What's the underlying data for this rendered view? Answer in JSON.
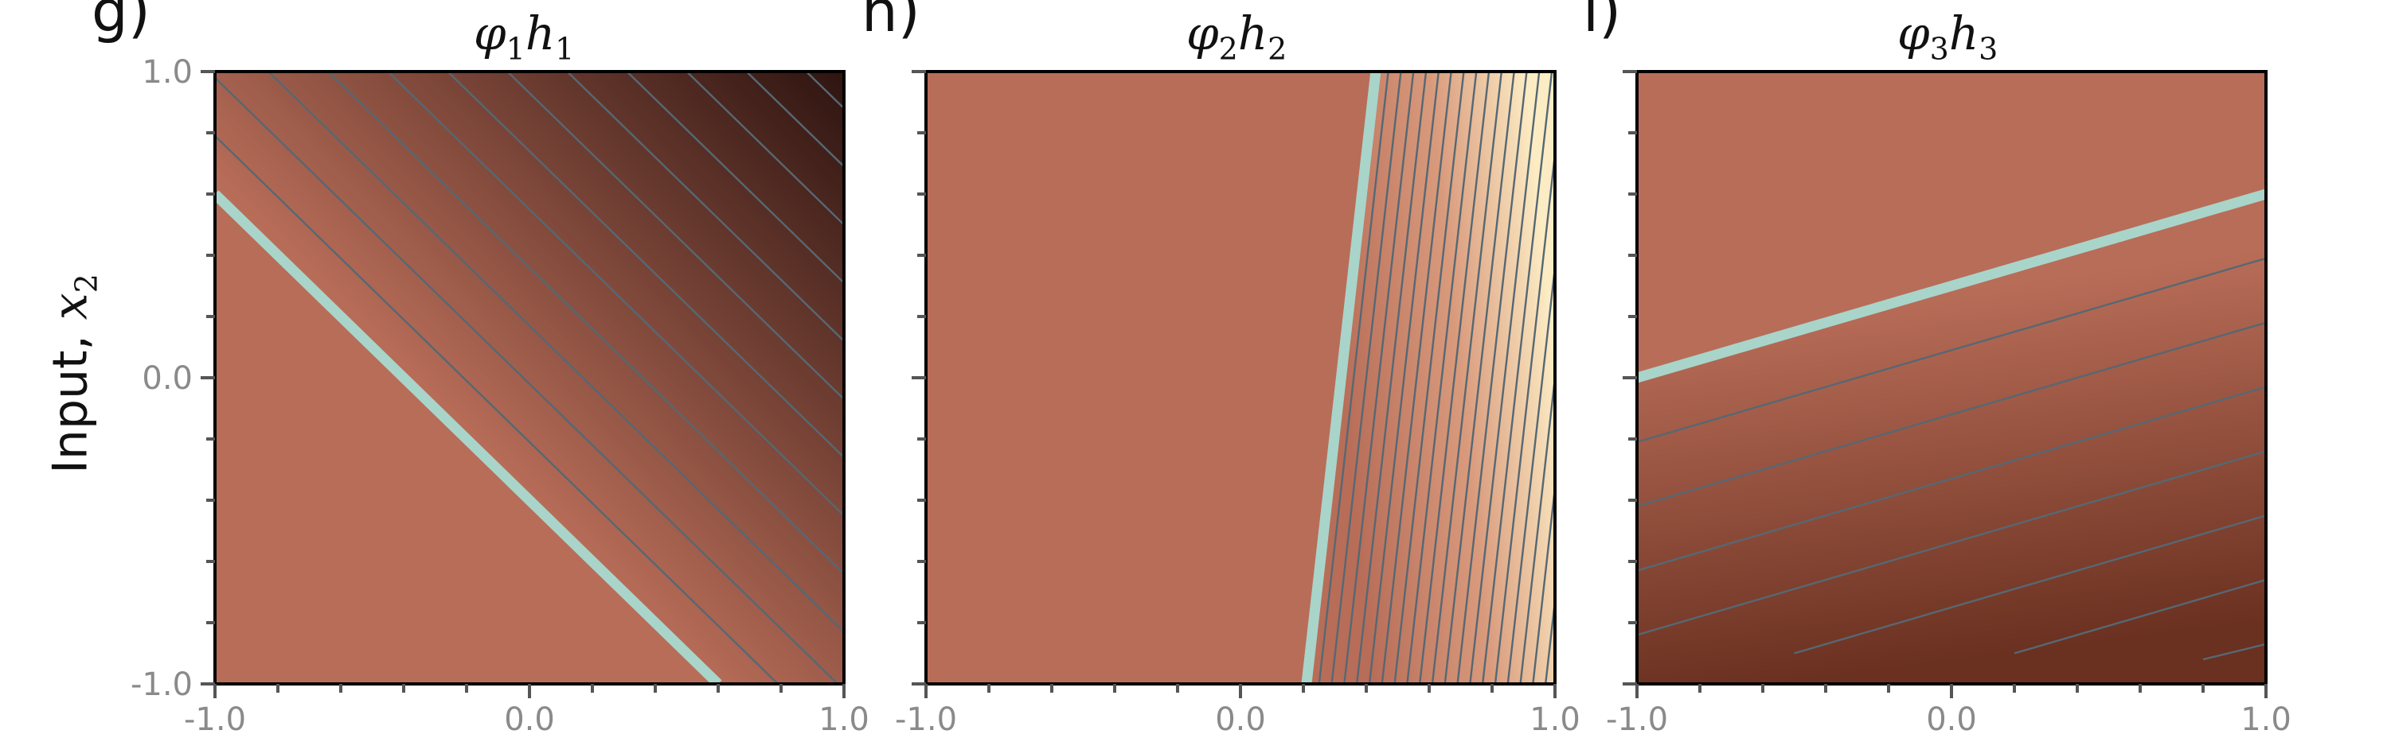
{
  "chart_data": [
    {
      "type": "heatmap",
      "panel_label": "g)",
      "title": "φ1h1",
      "title_base": "φ",
      "title_sub1": "1",
      "title_mid": "h",
      "title_sub2": "1",
      "xlim": [
        -1.0,
        1.0
      ],
      "ylim": [
        -1.0,
        1.0
      ],
      "x_ticklabels": [
        "-1.0",
        "0.0",
        "1.0"
      ],
      "y_ticklabels": [
        "-1.0",
        "0.0",
        "1.0"
      ],
      "colors": {
        "flat": "#b86d58",
        "dark": "#2e1410"
      },
      "zero_contour": [
        [
          -1.0,
          0.6
        ],
        [
          0.6,
          -1.0
        ]
      ],
      "contour_lines": [
        [
          [
            -1.0,
            0.79
          ],
          [
            0.79,
            -1.0
          ]
        ],
        [
          [
            -1.0,
            0.98
          ],
          [
            0.98,
            -1.0
          ]
        ],
        [
          [
            -0.83,
            1.0
          ],
          [
            1.0,
            -0.83
          ]
        ],
        [
          [
            -0.64,
            1.0
          ],
          [
            1.0,
            -0.64
          ]
        ],
        [
          [
            -0.45,
            1.0
          ],
          [
            1.0,
            -0.45
          ]
        ],
        [
          [
            -0.26,
            1.0
          ],
          [
            1.0,
            -0.26
          ]
        ],
        [
          [
            -0.07,
            1.0
          ],
          [
            1.0,
            -0.07
          ]
        ],
        [
          [
            0.12,
            1.0
          ],
          [
            1.0,
            0.12
          ]
        ],
        [
          [
            0.31,
            1.0
          ],
          [
            1.0,
            0.31
          ]
        ],
        [
          [
            0.5,
            1.0
          ],
          [
            1.0,
            0.5
          ]
        ],
        [
          [
            0.69,
            1.0
          ],
          [
            1.0,
            0.69
          ]
        ],
        [
          [
            0.88,
            1.0
          ],
          [
            1.0,
            0.88
          ]
        ]
      ]
    },
    {
      "type": "heatmap",
      "panel_label": "h)",
      "title": "φ2h2",
      "title_base": "φ",
      "title_sub1": "2",
      "title_mid": "h",
      "title_sub2": "2",
      "xlim": [
        -1.0,
        1.0
      ],
      "ylim": [
        -1.0,
        1.0
      ],
      "x_ticklabels": [
        "-1.0",
        "0.0",
        "1.0"
      ],
      "y_ticklabels": [],
      "colors": {
        "flat": "#b86d58",
        "light": "#fcecc4"
      },
      "zero_contour": [
        [
          0.21,
          -1.0
        ],
        [
          0.43,
          1.0
        ]
      ],
      "contour_lines": [
        [
          [
            0.25,
            -1.0
          ],
          [
            0.47,
            1.0
          ]
        ],
        [
          [
            0.29,
            -1.0
          ],
          [
            0.51,
            1.0
          ]
        ],
        [
          [
            0.33,
            -1.0
          ],
          [
            0.55,
            1.0
          ]
        ],
        [
          [
            0.37,
            -1.0
          ],
          [
            0.59,
            1.0
          ]
        ],
        [
          [
            0.41,
            -1.0
          ],
          [
            0.63,
            1.0
          ]
        ],
        [
          [
            0.45,
            -1.0
          ],
          [
            0.67,
            1.0
          ]
        ],
        [
          [
            0.49,
            -1.0
          ],
          [
            0.71,
            1.0
          ]
        ],
        [
          [
            0.53,
            -1.0
          ],
          [
            0.75,
            1.0
          ]
        ],
        [
          [
            0.57,
            -1.0
          ],
          [
            0.79,
            1.0
          ]
        ],
        [
          [
            0.61,
            -1.0
          ],
          [
            0.83,
            1.0
          ]
        ],
        [
          [
            0.65,
            -1.0
          ],
          [
            0.87,
            1.0
          ]
        ],
        [
          [
            0.69,
            -1.0
          ],
          [
            0.91,
            1.0
          ]
        ],
        [
          [
            0.73,
            -1.0
          ],
          [
            0.95,
            1.0
          ]
        ],
        [
          [
            0.77,
            -1.0
          ],
          [
            0.99,
            1.0
          ]
        ],
        [
          [
            0.81,
            -1.0
          ],
          [
            1.0,
            0.73
          ]
        ],
        [
          [
            0.85,
            -1.0
          ],
          [
            1.0,
            0.36
          ]
        ],
        [
          [
            0.89,
            -1.0
          ],
          [
            1.0,
            0.0
          ]
        ],
        [
          [
            0.93,
            -1.0
          ],
          [
            1.0,
            -0.36
          ]
        ],
        [
          [
            0.97,
            -1.0
          ],
          [
            1.0,
            -0.73
          ]
        ]
      ]
    },
    {
      "type": "heatmap",
      "panel_label": "i)",
      "title": "φ3h3",
      "title_base": "φ",
      "title_sub1": "3",
      "title_mid": "h",
      "title_sub2": "3",
      "xlim": [
        -1.0,
        1.0
      ],
      "ylim": [
        -1.0,
        1.0
      ],
      "x_ticklabels": [
        "-1.0",
        "0.0",
        "1.0"
      ],
      "y_ticklabels": [],
      "colors": {
        "flat": "#b86d58",
        "dark": "#6a3020"
      },
      "zero_contour": [
        [
          -1.0,
          0.0
        ],
        [
          1.0,
          0.6
        ]
      ],
      "contour_lines": [
        [
          [
            -1.0,
            -0.21
          ],
          [
            1.0,
            0.39
          ]
        ],
        [
          [
            -1.0,
            -0.42
          ],
          [
            1.0,
            0.18
          ]
        ],
        [
          [
            -1.0,
            -0.63
          ],
          [
            1.0,
            -0.03
          ]
        ],
        [
          [
            -1.0,
            -0.84
          ],
          [
            1.0,
            -0.24
          ]
        ],
        [
          [
            -0.5,
            -0.9
          ],
          [
            1.0,
            -0.45
          ]
        ],
        [
          [
            0.2,
            -0.9
          ],
          [
            1.0,
            -0.66
          ]
        ],
        [
          [
            0.8,
            -0.92
          ],
          [
            1.0,
            -0.87
          ]
        ]
      ]
    }
  ],
  "y_axis_label": "Input, ",
  "y_axis_var": "x",
  "y_axis_var_sub": "2",
  "contour_color": "#566873",
  "zero_contour_color": "#a9d4ca"
}
